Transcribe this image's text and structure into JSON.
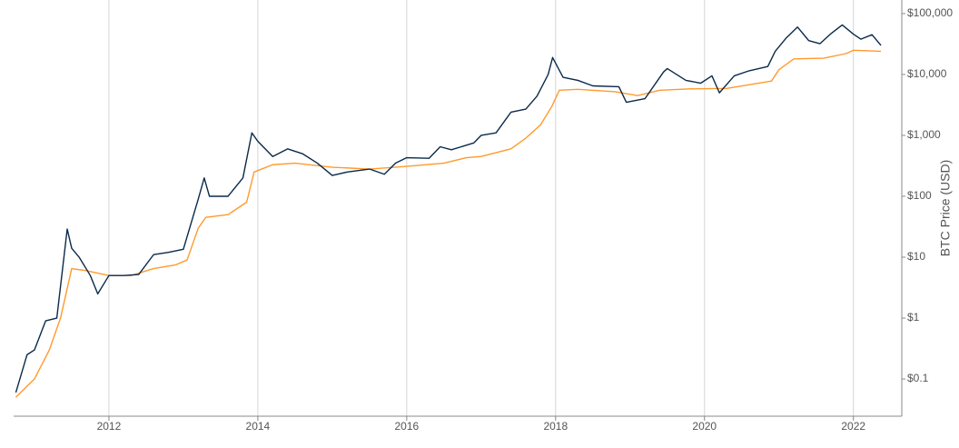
{
  "chart_data": {
    "type": "line",
    "y_label": "BTC Price (USD)",
    "y_scale": "log",
    "y_axis_side": "right",
    "x_grid": true,
    "xlim": [
      2010.72,
      2022.65
    ],
    "xticks": [
      2012,
      2014,
      2016,
      2018,
      2020,
      2022
    ],
    "ylim": [
      0.0245,
      167000
    ],
    "yticks": [
      {
        "value": 0.1,
        "label": "$0.1"
      },
      {
        "value": 1,
        "label": "$1"
      },
      {
        "value": 10,
        "label": "$10"
      },
      {
        "value": 100,
        "label": "$100"
      },
      {
        "value": 1000,
        "label": "$1,000"
      },
      {
        "value": 10000,
        "label": "$10,000"
      },
      {
        "value": 100000,
        "label": "$100,000"
      }
    ],
    "series": [
      {
        "color": "#ff9a2e",
        "x": [
          2010.75,
          2011.0,
          2011.2,
          2011.35,
          2011.5,
          2011.7,
          2012.0,
          2012.3,
          2012.6,
          2012.9,
          2013.05,
          2013.2,
          2013.3,
          2013.6,
          2013.85,
          2013.95,
          2014.2,
          2014.5,
          2015.0,
          2015.5,
          2016.0,
          2016.5,
          2016.8,
          2017.0,
          2017.4,
          2017.6,
          2017.8,
          2017.95,
          2018.05,
          2018.3,
          2018.8,
          2019.1,
          2019.4,
          2019.8,
          2020.3,
          2020.9,
          2021.0,
          2021.2,
          2021.6,
          2021.9,
          2022.0,
          2022.37
        ],
        "values": [
          0.05,
          0.1,
          0.3,
          1,
          6.5,
          6,
          5,
          5,
          6.5,
          7.5,
          9,
          30,
          45,
          50,
          80,
          250,
          330,
          350,
          300,
          280,
          310,
          350,
          430,
          450,
          600,
          900,
          1500,
          3000,
          5500,
          5700,
          5200,
          4500,
          5500,
          5800,
          5900,
          7800,
          12000,
          18000,
          18500,
          22000,
          25000,
          24000
        ]
      },
      {
        "color": "#0b2a4a",
        "x": [
          2010.75,
          2010.9,
          2011.0,
          2011.15,
          2011.3,
          2011.44,
          2011.5,
          2011.6,
          2011.75,
          2011.85,
          2012.0,
          2012.2,
          2012.4,
          2012.6,
          2012.8,
          2013.0,
          2013.2,
          2013.28,
          2013.35,
          2013.6,
          2013.8,
          2013.92,
          2014.0,
          2014.2,
          2014.4,
          2014.6,
          2014.8,
          2015.0,
          2015.2,
          2015.5,
          2015.7,
          2015.85,
          2016.0,
          2016.3,
          2016.45,
          2016.6,
          2016.9,
          2017.0,
          2017.2,
          2017.4,
          2017.6,
          2017.75,
          2017.9,
          2017.96,
          2018.1,
          2018.3,
          2018.5,
          2018.85,
          2018.95,
          2019.2,
          2019.45,
          2019.5,
          2019.75,
          2019.95,
          2020.1,
          2020.2,
          2020.4,
          2020.6,
          2020.85,
          2020.95,
          2021.1,
          2021.25,
          2021.4,
          2021.55,
          2021.7,
          2021.85,
          2022.0,
          2022.1,
          2022.25,
          2022.37
        ],
        "values": [
          0.06,
          0.25,
          0.3,
          0.9,
          1.0,
          29,
          14,
          10,
          5,
          2.5,
          5,
          5,
          5.2,
          11,
          12,
          13.5,
          90,
          200,
          100,
          100,
          200,
          1100,
          800,
          450,
          600,
          500,
          350,
          220,
          250,
          280,
          230,
          350,
          430,
          420,
          650,
          580,
          750,
          1000,
          1100,
          2400,
          2700,
          4400,
          10000,
          19000,
          9000,
          8000,
          6500,
          6300,
          3500,
          4000,
          11000,
          12500,
          8000,
          7200,
          9500,
          5000,
          9500,
          11500,
          13500,
          24000,
          40000,
          60000,
          36000,
          32000,
          47000,
          65000,
          46000,
          38000,
          45000,
          30000
        ]
      }
    ]
  }
}
